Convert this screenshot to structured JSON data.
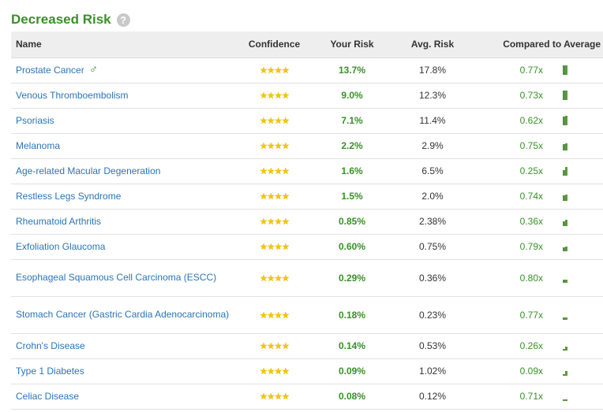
{
  "header": {
    "title": "Decreased Risk",
    "help_icon": "?"
  },
  "columns": {
    "name": "Name",
    "confidence": "Confidence",
    "your_risk": "Your Risk",
    "avg_risk": "Avg. Risk",
    "compared": "Compared to Average"
  },
  "stars": "★★★★",
  "male_icon": "♂",
  "colors": {
    "accent_green": "#3a8f2a",
    "link_blue": "#2b74b6",
    "star_gold": "#f6c400"
  },
  "rows": [
    {
      "name": "Prostate Cancer",
      "male": true,
      "your": "13.7%",
      "avg": "17.8%",
      "ratio": "0.77x"
    },
    {
      "name": "Venous Thromboembolism",
      "your": "9.0%",
      "avg": "12.3%",
      "ratio": "0.73x"
    },
    {
      "name": "Psoriasis",
      "your": "7.1%",
      "avg": "11.4%",
      "ratio": "0.62x"
    },
    {
      "name": "Melanoma",
      "your": "2.2%",
      "avg": "2.9%",
      "ratio": "0.75x"
    },
    {
      "name": "Age-related Macular Degeneration",
      "your": "1.6%",
      "avg": "6.5%",
      "ratio": "0.25x"
    },
    {
      "name": "Restless Legs Syndrome",
      "your": "1.5%",
      "avg": "2.0%",
      "ratio": "0.74x"
    },
    {
      "name": "Rheumatoid Arthritis",
      "your": "0.85%",
      "avg": "2.38%",
      "ratio": "0.36x"
    },
    {
      "name": "Exfoliation Glaucoma",
      "your": "0.60%",
      "avg": "0.75%",
      "ratio": "0.79x"
    },
    {
      "name": "Esophageal Squamous Cell Carcinoma (ESCC)",
      "your": "0.29%",
      "avg": "0.36%",
      "ratio": "0.80x"
    },
    {
      "name": "Stomach Cancer (Gastric Cardia Adenocarcinoma)",
      "your": "0.18%",
      "avg": "0.23%",
      "ratio": "0.77x"
    },
    {
      "name": "Crohn's Disease",
      "your": "0.14%",
      "avg": "0.53%",
      "ratio": "0.26x"
    },
    {
      "name": "Type 1 Diabetes",
      "your": "0.09%",
      "avg": "1.02%",
      "ratio": "0.09x"
    },
    {
      "name": "Celiac Disease",
      "your": "0.08%",
      "avg": "0.12%",
      "ratio": "0.71x"
    }
  ]
}
